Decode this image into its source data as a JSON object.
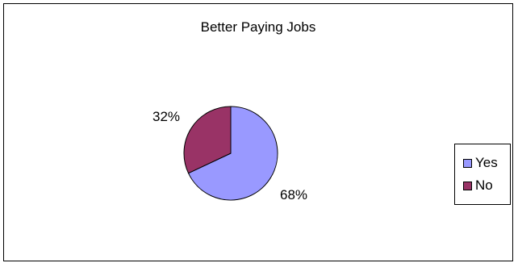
{
  "chart_data": {
    "type": "pie",
    "title": "Better Paying Jobs",
    "categories": [
      "Yes",
      "No"
    ],
    "values": [
      68,
      32
    ],
    "labels": [
      "68%",
      "32%"
    ],
    "colors": [
      "#9999FF",
      "#993366"
    ],
    "legend_position": "right"
  }
}
